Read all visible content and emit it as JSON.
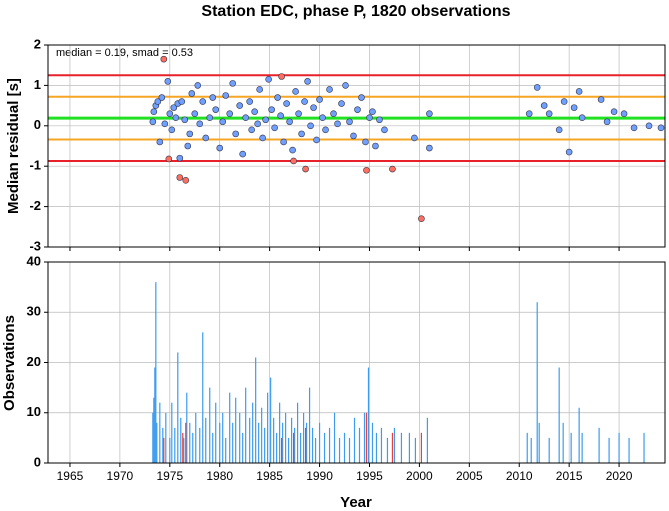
{
  "chart_data": [
    {
      "type": "scatter",
      "title": "Station EDC, phase P, 1820 observations",
      "ylabel": "Median residual [s]",
      "annotation": "median = 0.19, smad = 0.53",
      "xlim": [
        1962.8,
        2024.6
      ],
      "xticks": [
        1965,
        1970,
        1975,
        1980,
        1985,
        1990,
        1995,
        2000,
        2005,
        2010,
        2015,
        2020
      ],
      "ylim": [
        -3,
        2
      ],
      "yticks": [
        -3,
        -2,
        -1,
        0,
        1,
        2
      ],
      "grid": true,
      "hlines": [
        {
          "value": 1.25,
          "color": "#e8202a"
        },
        {
          "value": 0.72,
          "color": "#f5a623"
        },
        {
          "value": 0.19,
          "color": "#22e022"
        },
        {
          "value": -0.34,
          "color": "#f5a623"
        },
        {
          "value": -0.87,
          "color": "#e8202a"
        }
      ],
      "series": [
        {
          "color": "#6f9fff",
          "x": [
            1973.3,
            1973.4,
            1973.6,
            1973.8,
            1974.0,
            1974.2,
            1974.5,
            1974.8,
            1975.0,
            1975.2,
            1975.4,
            1975.6,
            1975.8,
            1976.0,
            1976.2,
            1976.5,
            1976.8,
            1977.0,
            1977.2,
            1977.5,
            1977.8,
            1978.0,
            1978.3,
            1978.6,
            1979.0,
            1979.3,
            1979.6,
            1980.0,
            1980.3,
            1980.6,
            1981.0,
            1981.3,
            1981.6,
            1982.0,
            1982.3,
            1982.6,
            1983.0,
            1983.2,
            1983.5,
            1983.8,
            1984.0,
            1984.3,
            1984.6,
            1984.9,
            1985.2,
            1985.5,
            1985.8,
            1986.1,
            1986.4,
            1986.7,
            1987.0,
            1987.3,
            1987.6,
            1987.9,
            1988.2,
            1988.5,
            1988.8,
            1989.1,
            1989.4,
            1989.7,
            1990.0,
            1990.3,
            1990.6,
            1991.0,
            1991.4,
            1991.8,
            1992.2,
            1992.6,
            1993.0,
            1993.4,
            1993.8,
            1994.2,
            1994.6,
            1995.0,
            1995.3,
            1995.6,
            1996.0,
            1996.5,
            1999.5,
            2001.0,
            2001.0,
            2011.0,
            2011.8,
            2012.5,
            2013.0,
            2014.0,
            2014.5,
            2015.0,
            2015.5,
            2016.0,
            2016.3,
            2018.2,
            2018.8,
            2019.5,
            2020.5,
            2021.5,
            2023.0,
            2024.2
          ],
          "values": [
            0.1,
            0.35,
            0.5,
            0.6,
            -0.4,
            0.7,
            0.05,
            1.1,
            0.3,
            -0.1,
            0.45,
            0.2,
            0.55,
            -0.8,
            0.6,
            0.15,
            -0.5,
            -0.2,
            0.8,
            0.3,
            1.0,
            0.05,
            0.6,
            -0.3,
            0.2,
            0.7,
            0.4,
            -0.55,
            0.1,
            0.75,
            0.3,
            1.05,
            -0.2,
            0.5,
            -0.7,
            0.2,
            0.6,
            -0.1,
            0.35,
            0.05,
            0.9,
            -0.3,
            0.15,
            1.15,
            0.4,
            -0.05,
            0.7,
            0.25,
            -0.4,
            0.55,
            0.1,
            -0.6,
            0.85,
            0.3,
            -0.2,
            0.6,
            1.1,
            0.0,
            0.45,
            -0.35,
            0.65,
            0.2,
            -0.1,
            0.9,
            0.3,
            0.05,
            0.55,
            1.0,
            0.1,
            -0.25,
            0.4,
            0.7,
            -0.4,
            0.2,
            0.35,
            -0.5,
            0.15,
            -0.1,
            -0.3,
            0.3,
            -0.55,
            0.3,
            0.95,
            0.5,
            0.3,
            -0.1,
            0.6,
            -0.65,
            0.45,
            0.85,
            0.2,
            0.65,
            0.1,
            0.35,
            0.3,
            -0.05,
            0.0,
            -0.05
          ]
        },
        {
          "color": "#ff6f61",
          "x": [
            1974.4,
            1974.9,
            1976.0,
            1976.6,
            1986.2,
            1987.4,
            1988.6,
            1994.7,
            1997.3,
            2000.2
          ],
          "values": [
            1.65,
            -0.82,
            -1.28,
            -1.35,
            1.22,
            -0.87,
            -1.07,
            -1.1,
            -1.07,
            -2.3
          ]
        }
      ]
    },
    {
      "type": "bar",
      "ylabel": "Observations",
      "xlabel": "Year",
      "xlim": [
        1962.8,
        2024.6
      ],
      "xticks": [
        1965,
        1970,
        1975,
        1980,
        1985,
        1990,
        1995,
        2000,
        2005,
        2010,
        2015,
        2020
      ],
      "ylim": [
        0,
        40
      ],
      "yticks": [
        0,
        10,
        20,
        30,
        40
      ],
      "grid": true,
      "series": [
        {
          "color": "#3d9cf0",
          "x": [
            1973.3,
            1973.4,
            1973.5,
            1973.6,
            1973.7,
            1974.0,
            1974.3,
            1974.6,
            1975.0,
            1975.2,
            1975.5,
            1975.8,
            1976.1,
            1976.4,
            1976.7,
            1977.0,
            1977.3,
            1977.6,
            1978.0,
            1978.3,
            1978.6,
            1979.0,
            1979.3,
            1979.6,
            1980.0,
            1980.3,
            1980.6,
            1981.0,
            1981.3,
            1981.6,
            1982.0,
            1982.3,
            1982.6,
            1983.0,
            1983.3,
            1983.6,
            1983.9,
            1984.2,
            1984.5,
            1984.8,
            1985.1,
            1985.4,
            1985.7,
            1986.0,
            1986.3,
            1986.6,
            1986.9,
            1987.2,
            1987.5,
            1987.8,
            1988.1,
            1988.4,
            1988.7,
            1989.0,
            1989.3,
            1989.6,
            1990.0,
            1990.5,
            1991.0,
            1991.5,
            1992.0,
            1992.5,
            1993.0,
            1993.5,
            1994.0,
            1994.5,
            1994.9,
            1995.3,
            1995.7,
            1996.2,
            1996.8,
            1997.5,
            1998.2,
            1999.0,
            1999.6,
            2000.8,
            2010.8,
            2011.2,
            2011.8,
            2012.0,
            2013.0,
            2014.0,
            2014.4,
            2015.2,
            2016.0,
            2016.3,
            2018.0,
            2019.0,
            2020.0,
            2021.0,
            2022.5
          ],
          "values": [
            10,
            13,
            19,
            36,
            8,
            12,
            7,
            10,
            5,
            12,
            7,
            22,
            9,
            5,
            14,
            8,
            6,
            10,
            7,
            26,
            9,
            15,
            6,
            12,
            8,
            10,
            5,
            14,
            8,
            13,
            10,
            6,
            15,
            9,
            12,
            21,
            8,
            11,
            7,
            14,
            17,
            9,
            6,
            12,
            8,
            10,
            5,
            9,
            7,
            12,
            6,
            10,
            8,
            15,
            7,
            5,
            8,
            6,
            7,
            10,
            5,
            6,
            5,
            9,
            7,
            10,
            19,
            8,
            6,
            7,
            5,
            7,
            6,
            6,
            5,
            9,
            6,
            5,
            32,
            8,
            5,
            19,
            8,
            6,
            11,
            6,
            7,
            5,
            6,
            5,
            6
          ]
        },
        {
          "color": "#e8403a",
          "x": [
            1974.4,
            1976.3,
            1976.6,
            1986.2,
            1987.4,
            1988.6,
            1994.7,
            1997.3,
            2000.2
          ],
          "values": [
            5,
            6,
            8,
            5,
            6,
            7,
            10,
            6,
            6
          ]
        }
      ]
    }
  ]
}
